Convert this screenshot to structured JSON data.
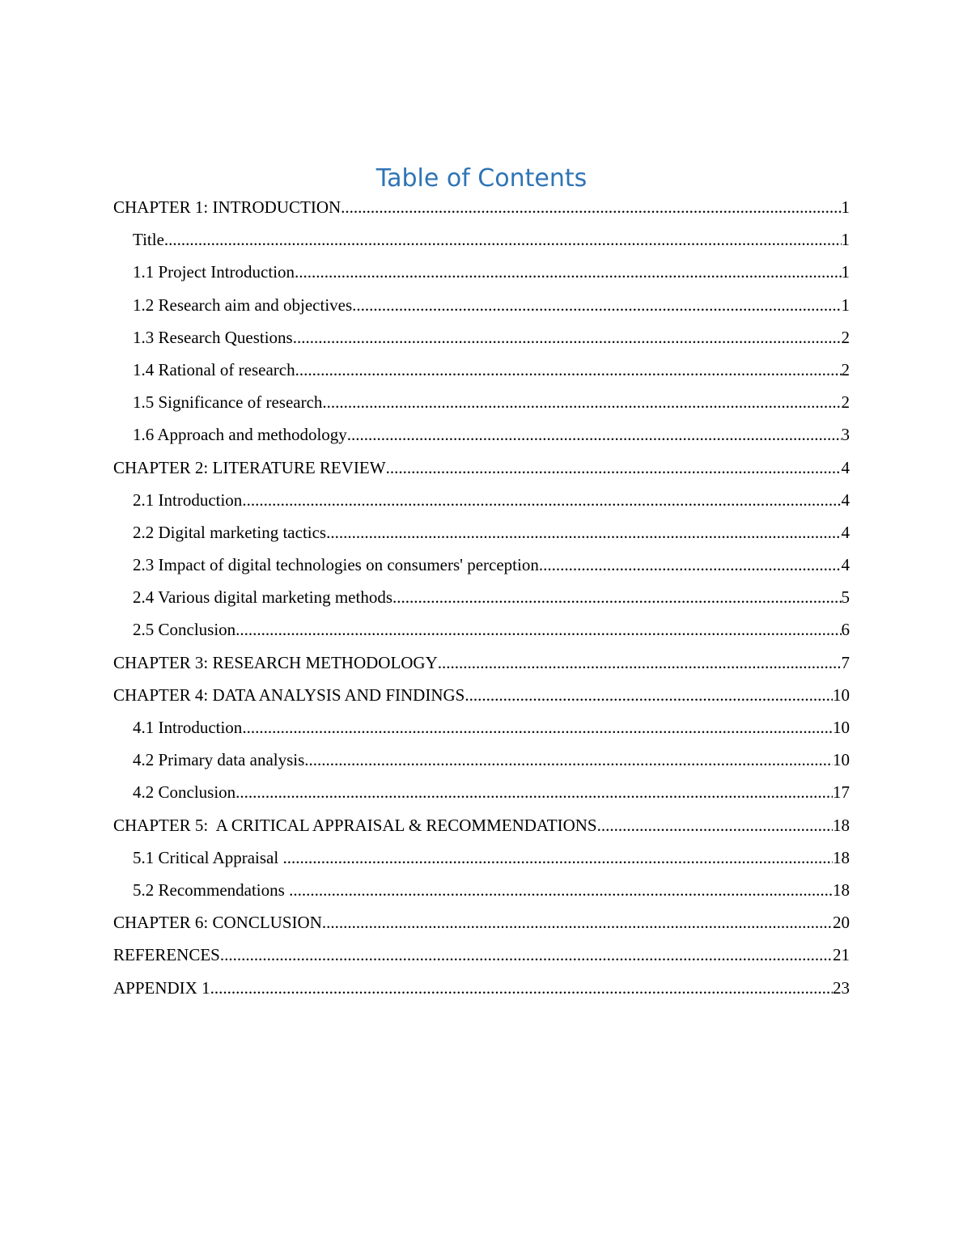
{
  "title": "Table of Contents",
  "entries": [
    {
      "level": 1,
      "label": "CHAPTER 1: INTRODUCTION",
      "page": "1"
    },
    {
      "level": 2,
      "label": "Title",
      "page": "1"
    },
    {
      "level": 2,
      "label": "1.1 Project Introduction",
      "page": "1"
    },
    {
      "level": 2,
      "label": "1.2 Research aim and objectives",
      "page": "1"
    },
    {
      "level": 2,
      "label": "1.3 Research Questions",
      "page": "2"
    },
    {
      "level": 2,
      "label": "1.4 Rational of research",
      "page": "2"
    },
    {
      "level": 2,
      "label": "1.5 Significance of research",
      "page": "2"
    },
    {
      "level": 2,
      "label": "1.6 Approach and methodology",
      "page": "3"
    },
    {
      "level": 1,
      "label": "CHAPTER 2: LITERATURE REVIEW",
      "page": "4"
    },
    {
      "level": 2,
      "label": "2.1 Introduction",
      "page": "4"
    },
    {
      "level": 2,
      "label": "2.2 Digital marketing tactics",
      "page": "4"
    },
    {
      "level": 2,
      "label": "2.3 Impact of digital technologies on consumers' perception",
      "page": "4"
    },
    {
      "level": 2,
      "label": "2.4 Various digital marketing methods",
      "page": "5"
    },
    {
      "level": 2,
      "label": "2.5 Conclusion",
      "page": "6"
    },
    {
      "level": 1,
      "label": "CHAPTER 3: RESEARCH METHODOLOGY",
      "page": "7"
    },
    {
      "level": 1,
      "label": "CHAPTER 4: DATA ANALYSIS AND FINDINGS",
      "page": "10"
    },
    {
      "level": 2,
      "label": "4.1 Introduction",
      "page": "10"
    },
    {
      "level": 2,
      "label": "4.2 Primary data analysis",
      "page": "10"
    },
    {
      "level": 2,
      "label": "4.2 Conclusion",
      "page": "17"
    },
    {
      "level": 1,
      "label": "CHAPTER 5:  A CRITICAL APPRAISAL & RECOMMENDATIONS",
      "page": "18"
    },
    {
      "level": 2,
      "label": "5.1 Critical Appraisal ",
      "page": "18"
    },
    {
      "level": 2,
      "label": "5.2 Recommendations ",
      "page": "18"
    },
    {
      "level": 1,
      "label": "CHAPTER 6: CONCLUSION",
      "page": "20"
    },
    {
      "level": 1,
      "label": "REFERENCES",
      "page": "21"
    },
    {
      "level": 1,
      "label": "APPENDIX 1",
      "page": "23"
    }
  ],
  "colors": {
    "title": "#2e74b5",
    "text": "#000000"
  }
}
